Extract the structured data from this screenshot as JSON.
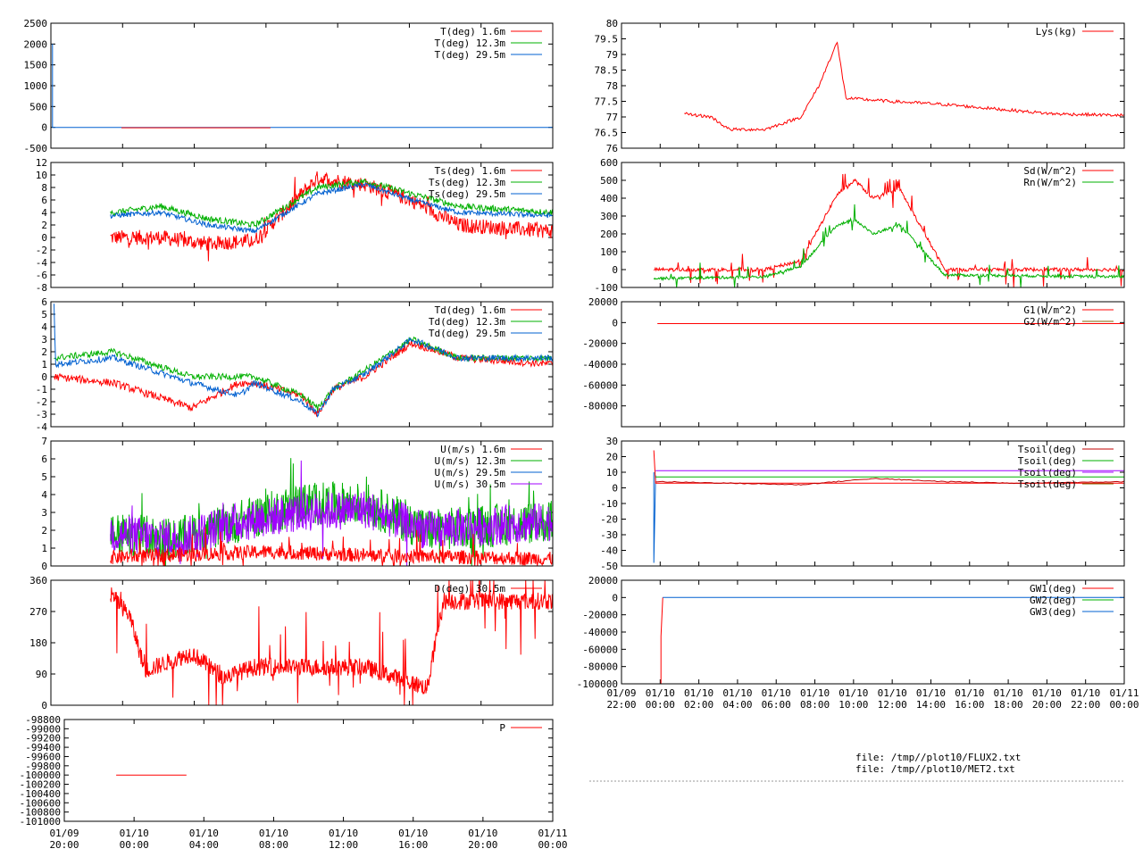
{
  "colors": {
    "c1": "#ff0000",
    "c2": "#00b000",
    "c3": "#0060d0",
    "c4": "#a000ff",
    "c5": "#c00000",
    "c6": "#806000"
  },
  "files": [
    "file: /tmp//plot10/FLUX2.txt",
    "file: /tmp//plot10/MET2.txt"
  ],
  "chart_data": [
    {
      "id": "L1",
      "type": "line",
      "yticks": [
        "2500",
        "2000",
        "1500",
        "1000",
        "500",
        "0",
        "-500"
      ],
      "ylim": [
        -500,
        2500
      ],
      "legend": [
        {
          "label": "T(deg)  1.6m",
          "color": "c1"
        },
        {
          "label": "T(deg) 12.3m",
          "color": "c2"
        },
        {
          "label": "T(deg) 29.5m",
          "color": "c3"
        }
      ]
    },
    {
      "id": "L2",
      "type": "line",
      "yticks": [
        "12",
        "10",
        "8",
        "6",
        "4",
        "2",
        "0",
        "-2",
        "-4",
        "-6",
        "-8"
      ],
      "ylim": [
        -8,
        12
      ],
      "legend": [
        {
          "label": "Ts(deg)  1.6m",
          "color": "c1"
        },
        {
          "label": "Ts(deg) 12.3m",
          "color": "c2"
        },
        {
          "label": "Ts(deg) 29.5m",
          "color": "c3"
        }
      ]
    },
    {
      "id": "L3",
      "type": "line",
      "yticks": [
        "6",
        "5",
        "4",
        "3",
        "2",
        "1",
        "0",
        "-1",
        "-2",
        "-3",
        "-4"
      ],
      "ylim": [
        -4,
        6
      ],
      "legend": [
        {
          "label": "Td(deg)  1.6m",
          "color": "c1"
        },
        {
          "label": "Td(deg) 12.3m",
          "color": "c2"
        },
        {
          "label": "Td(deg) 29.5m",
          "color": "c3"
        }
      ]
    },
    {
      "id": "L4",
      "type": "line",
      "yticks": [
        "7",
        "6",
        "5",
        "4",
        "3",
        "2",
        "1",
        "0"
      ],
      "ylim": [
        0,
        7
      ],
      "legend": [
        {
          "label": "U(m/s)  1.6m",
          "color": "c1"
        },
        {
          "label": "U(m/s) 12.3m",
          "color": "c2"
        },
        {
          "label": "U(m/s) 29.5m",
          "color": "c3"
        },
        {
          "label": "U(m/s) 30.5m",
          "color": "c4"
        }
      ]
    },
    {
      "id": "L5",
      "type": "line",
      "yticks": [
        "360",
        "270",
        "180",
        "90",
        "0"
      ],
      "ylim": [
        0,
        360
      ],
      "legend": [
        {
          "label": "D(deg) 30.5m",
          "color": "c1"
        }
      ]
    },
    {
      "id": "L6",
      "type": "line",
      "yticks": [
        "-101000",
        "-100800",
        "-100600",
        "-100400",
        "-100200",
        "-100000",
        "-99800",
        "-99600",
        "-99400",
        "-99200",
        "-99000",
        "-98800"
      ],
      "ylim": [
        -101000,
        -98800
      ],
      "legend": [
        {
          "label": "P",
          "color": "c1"
        }
      ],
      "series": [
        {
          "x": [
            -0.6,
            4.0
          ],
          "y": [
            -100000,
            -100000
          ]
        }
      ]
    },
    {
      "id": "R1",
      "type": "line",
      "yticks": [
        "80",
        "79.5",
        "79",
        "78.5",
        "78",
        "77.5",
        "77",
        "76.5",
        "76"
      ],
      "ylim": [
        76,
        80
      ],
      "legend": [
        {
          "label": "Lys(kg)",
          "color": "c1"
        }
      ]
    },
    {
      "id": "R2",
      "type": "line",
      "yticks": [
        "600",
        "500",
        "400",
        "300",
        "200",
        "100",
        "0",
        "-100"
      ],
      "ylim": [
        -100,
        600
      ],
      "legend": [
        {
          "label": "Sd(W/m^2)",
          "color": "c1"
        },
        {
          "label": "Rn(W/m^2)",
          "color": "c2"
        }
      ]
    },
    {
      "id": "R3",
      "type": "line",
      "yticks": [
        "20000",
        "0",
        "-20000",
        "-40000",
        "-60000",
        "-80000"
      ],
      "ylim": [
        -100000,
        20000
      ],
      "legend": [
        {
          "label": "G1(W/m^2)",
          "color": "c1"
        },
        {
          "label": "G2(W/m^2)",
          "color": "c6"
        }
      ]
    },
    {
      "id": "R4",
      "type": "line",
      "yticks": [
        "30",
        "20",
        "10",
        "0",
        "-10",
        "-20",
        "-30",
        "-40",
        "-50"
      ],
      "ylim": [
        -50,
        30
      ],
      "legend": [
        {
          "label": "Tsoil(deg)",
          "color": "c5"
        },
        {
          "label": "Tsoil(deg)",
          "color": "c2"
        },
        {
          "label": "Tsoil(deg)",
          "color": "c4"
        },
        {
          "label": "Tsoil(deg)",
          "color": "c6"
        }
      ]
    },
    {
      "id": "R5",
      "type": "line",
      "yticks": [
        "20000",
        "0",
        "-20000",
        "-40000",
        "-60000",
        "-80000",
        "-100000"
      ],
      "ylim": [
        -100000,
        20000
      ],
      "legend": [
        {
          "label": "GW1(deg)",
          "color": "c1"
        },
        {
          "label": "GW2(deg)",
          "color": "c2"
        },
        {
          "label": "GW3(deg)",
          "color": "c3"
        }
      ]
    }
  ],
  "xaxis_left": {
    "range_hours": [
      -4,
      28
    ],
    "ticks": [
      {
        "d": "01/09",
        "t": "20:00"
      },
      {
        "d": "01/10",
        "t": "00:00"
      },
      {
        "d": "01/10",
        "t": "04:00"
      },
      {
        "d": "01/10",
        "t": "08:00"
      },
      {
        "d": "01/10",
        "t": "12:00"
      },
      {
        "d": "01/10",
        "t": "16:00"
      },
      {
        "d": "01/10",
        "t": "20:00"
      },
      {
        "d": "01/11",
        "t": "00:00"
      }
    ]
  },
  "xaxis_right": {
    "range_hours": [
      -2,
      26
    ],
    "ticks": [
      {
        "d": "01/09",
        "t": "22:00"
      },
      {
        "d": "01/10",
        "t": "00:00"
      },
      {
        "d": "01/10",
        "t": "02:00"
      },
      {
        "d": "01/10",
        "t": "04:00"
      },
      {
        "d": "01/10",
        "t": "06:00"
      },
      {
        "d": "01/10",
        "t": "08:00"
      },
      {
        "d": "01/10",
        "t": "10:00"
      },
      {
        "d": "01/10",
        "t": "12:00"
      },
      {
        "d": "01/10",
        "t": "14:00"
      },
      {
        "d": "01/10",
        "t": "16:00"
      },
      {
        "d": "01/10",
        "t": "18:00"
      },
      {
        "d": "01/10",
        "t": "20:00"
      },
      {
        "d": "01/10",
        "t": "22:00"
      },
      {
        "d": "01/11",
        "t": "00:00"
      }
    ]
  }
}
